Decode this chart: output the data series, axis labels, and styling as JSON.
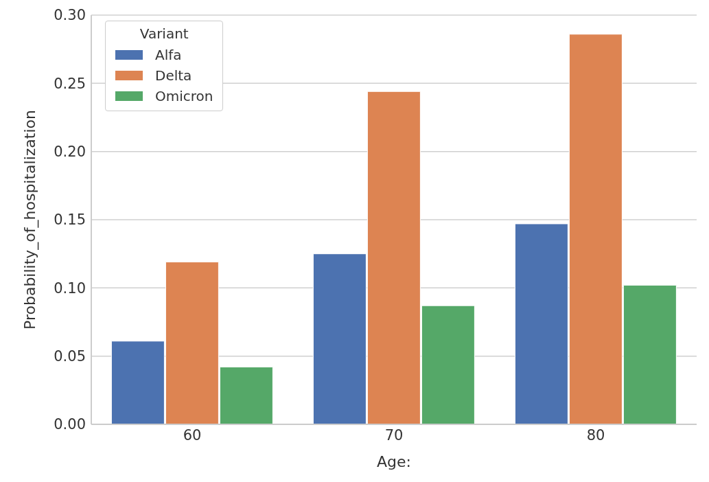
{
  "chart_data": {
    "type": "bar",
    "xlabel": "Age:",
    "ylabel": "Probability_of_hospitalization",
    "legend_title": "Variant",
    "categories": [
      "60",
      "70",
      "80"
    ],
    "series": [
      {
        "name": "Alfa",
        "color": "#4c72b0",
        "values": [
          0.061,
          0.125,
          0.147
        ]
      },
      {
        "name": "Delta",
        "color": "#dd8452",
        "values": [
          0.119,
          0.244,
          0.286
        ]
      },
      {
        "name": "Omicron",
        "color": "#55a868",
        "values": [
          0.042,
          0.087,
          0.102
        ]
      }
    ],
    "ylim": [
      0,
      0.3
    ],
    "yticks": [
      {
        "value": 0,
        "label": "0.00"
      },
      0.05,
      {
        "value": 0.1,
        "label": "0.10"
      },
      0.15,
      {
        "value": 0.2,
        "label": "0.20"
      },
      0.25,
      {
        "value": 0.3,
        "label": "0.30"
      }
    ],
    "grid": "y",
    "legend": "top left"
  }
}
